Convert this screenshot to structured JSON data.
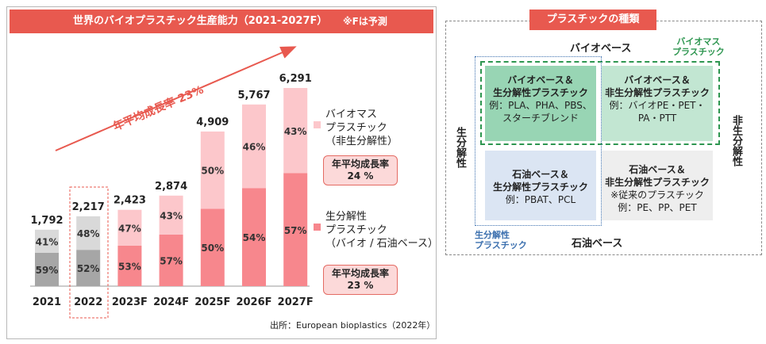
{
  "left": {
    "title": "世界のバイオプラスチック生産能力（2021-2027F）",
    "note": "※Fは予測",
    "growth_arrow_label": "年平均成長率 23%",
    "legend": [
      {
        "label_lines": [
          "バイオマス",
          "プラスチック",
          "（非生分解性）"
        ],
        "cagr_lines": [
          "年平均成長率",
          "24 %"
        ],
        "color": "#fcc7cb"
      },
      {
        "label_lines": [
          "生分解性",
          "プラスチック",
          "（バイオ / 石油ベース）"
        ],
        "cagr_lines": [
          "年平均成長率",
          "23 %"
        ],
        "color": "#f7878d"
      }
    ],
    "source": "出所：European bioplastics（2022年）"
  },
  "chart_data": {
    "type": "bar",
    "stacked": true,
    "categories": [
      "2021",
      "2022",
      "2023F",
      "2024F",
      "2025F",
      "2026F",
      "2027F"
    ],
    "totals": [
      1792,
      2217,
      2423,
      2874,
      4909,
      5767,
      6291
    ],
    "totals_labels": [
      "1,792",
      "2,217",
      "2,423",
      "2,874",
      "4,909",
      "5,767",
      "6,291"
    ],
    "series": [
      {
        "name": "生分解性プラスチック（バイオ / 石油ベース）",
        "percent": [
          59,
          52,
          53,
          57,
          50,
          54,
          57
        ],
        "color": "#f7878d",
        "color_actual": "#a6a6a6"
      },
      {
        "name": "バイオマスプラスチック（非生分解性）",
        "percent": [
          41,
          48,
          47,
          43,
          50,
          46,
          43
        ],
        "color": "#fcc7cb",
        "color_actual": "#d9d9d9"
      }
    ],
    "actual_years": 2,
    "highlighted_category": "2022"
  },
  "right": {
    "title": "プラスチックの種類",
    "top_axis": "バイオベース",
    "bottom_axis": "石油ベース",
    "left_axis": "生分解性",
    "right_axis": "非生分解性",
    "biomass_label": [
      "バイオマス",
      "プラスチック"
    ],
    "biodeg_label": [
      "生分解性",
      "プラスチック"
    ],
    "quadrants": [
      {
        "lines": [
          "バイオベース＆",
          "生分解性プラスチック"
        ],
        "example": [
          "例：PLA、PHA、PBS、",
          "スターチブレンド"
        ],
        "color": "#98d5b4"
      },
      {
        "lines": [
          "バイオベース＆",
          "非生分解性プラスチック"
        ],
        "example": [
          "例：バイオPE・PET・",
          "PA・PTT"
        ],
        "color": "#c2e6d2"
      },
      {
        "lines": [
          "石油ベース＆",
          "生分解性プラスチック"
        ],
        "example": [
          "例：PBAT、PCL"
        ],
        "color": "#dbe5f3"
      },
      {
        "lines": [
          "石油ベース＆",
          "非生分解性プラスチック"
        ],
        "example": [
          "※従来のプラスチック",
          "例：PE、PP、PET"
        ],
        "color": "#eeeeee"
      }
    ],
    "colors": {
      "biomass_border": "#2e9650",
      "biodeg_border": "#3b6fae"
    }
  }
}
